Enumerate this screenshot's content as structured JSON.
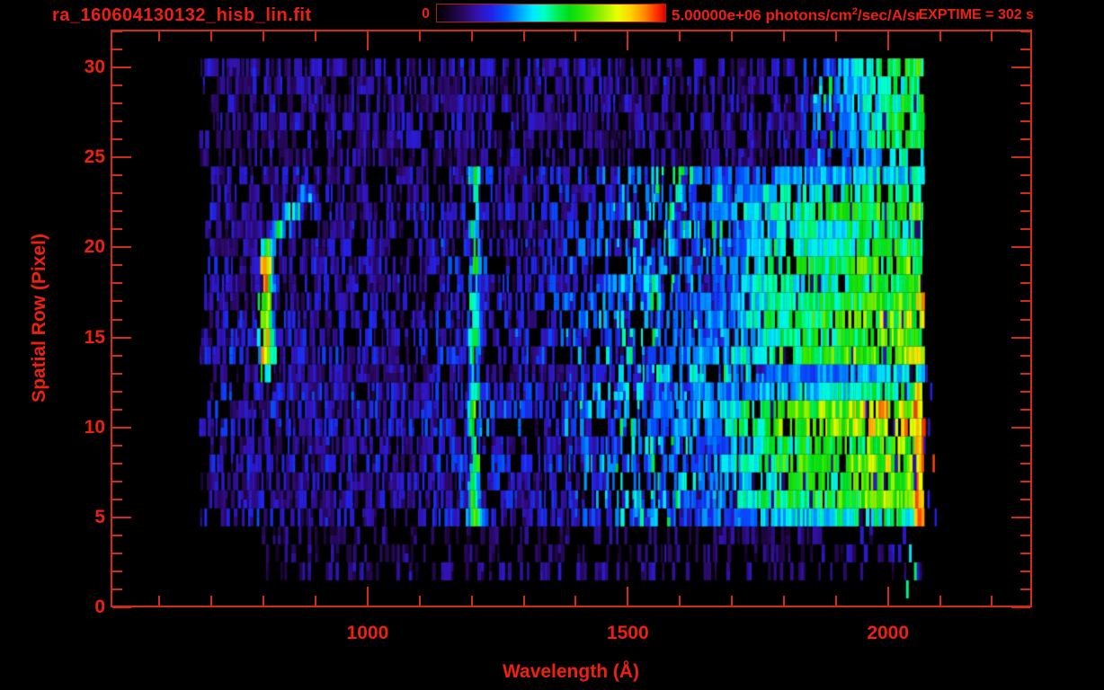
{
  "chart_data": {
    "type": "heatmap",
    "title": "ra_160604130132_hisb_lin.fit",
    "xlabel": "Wavelength (Å)",
    "ylabel": "Spatial Row (Pixel)",
    "exptime_label": "EXPTIME = 302 s",
    "x_range_angstrom": [
      506,
      2277
    ],
    "y_range_rows": [
      0,
      32.1
    ],
    "x_major_ticks": [
      1000,
      1500,
      2000
    ],
    "x_minor_tick_step": 100,
    "y_major_ticks": [
      0,
      5,
      10,
      15,
      20,
      25,
      30
    ],
    "y_minor_tick_step": 1,
    "colorbar": {
      "min_label": "0",
      "max_label_prefix": "5.00000e+06 photons/cm",
      "max_label_sup": "2",
      "max_label_suffix": "/sec/A/sr",
      "value_range": [
        0,
        5000000
      ],
      "stops": [
        [
          0.0,
          "#000000"
        ],
        [
          0.06,
          "#16042e"
        ],
        [
          0.12,
          "#2b0966"
        ],
        [
          0.18,
          "#3313b4"
        ],
        [
          0.24,
          "#2222e8"
        ],
        [
          0.3,
          "#0055ff"
        ],
        [
          0.36,
          "#00a0ff"
        ],
        [
          0.42,
          "#00e8ff"
        ],
        [
          0.47,
          "#00ffc8"
        ],
        [
          0.52,
          "#00f060"
        ],
        [
          0.58,
          "#00dc14"
        ],
        [
          0.65,
          "#3ce800"
        ],
        [
          0.72,
          "#96f000"
        ],
        [
          0.79,
          "#e8ff00"
        ],
        [
          0.85,
          "#ffd000"
        ],
        [
          0.91,
          "#ff8800"
        ],
        [
          0.96,
          "#ff3300"
        ],
        [
          1.0,
          "#dd0000"
        ]
      ]
    },
    "colors": {
      "red_text": "#ee2012",
      "axis": "#d22d14",
      "background": "#000000"
    },
    "image": {
      "noise_seed": 7,
      "data_wave_start": 675,
      "data_wave_end": 2065,
      "row_count": 31,
      "background_noise_level": 0.13,
      "features": [
        {
          "name": "airglow-hook-emission",
          "wave_center": 806,
          "sigma": 15,
          "rows": [
            13,
            23
          ],
          "peak": 0.8,
          "curve_drift_per_row": 23,
          "note": "hooked bright arc ~780-900 A, yellow-orange core rows 14-19"
        },
        {
          "name": "lyman-alpha-emission-line",
          "wave_center": 1206,
          "sigma": 11.5,
          "rows": [
            5,
            24
          ],
          "peak": 0.64
        },
        {
          "name": "long-wavelength-continuum",
          "wave_rise": [
            1480,
            1840
          ],
          "wave_end": 2065,
          "level": 0.55,
          "extra_level": 0.11,
          "bright_rows": [
            6,
            11
          ],
          "main_rows": [
            14,
            23
          ]
        },
        {
          "name": "scattered-light-band",
          "rows": [
            5,
            24
          ],
          "wave": [
            1250,
            1700
          ],
          "level": 0.2
        },
        {
          "name": "detector-edge-hot-pixels",
          "wave": [
            2050,
            2066
          ],
          "rows": [
            5,
            20
          ],
          "level": 0.9
        }
      ]
    }
  }
}
